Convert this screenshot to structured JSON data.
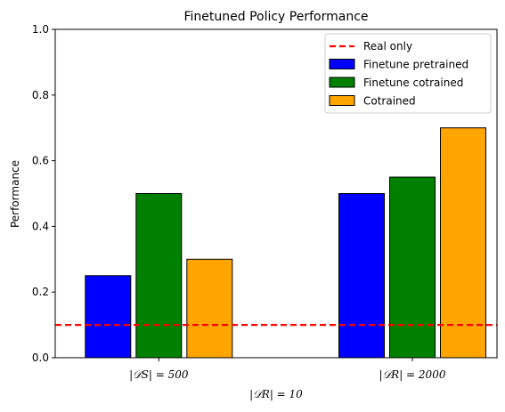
{
  "chart_data": {
    "type": "bar",
    "title": "Finetuned Policy Performance",
    "xlabel": "|𝒟R| = 10",
    "ylabel": "Performance",
    "ylim": [
      0,
      1.0
    ],
    "yticks": [
      "0.0",
      "0.2",
      "0.4",
      "0.6",
      "0.8",
      "1.0"
    ],
    "ytick_values": [
      0.0,
      0.2,
      0.4,
      0.6,
      0.8,
      1.0
    ],
    "categories": [
      "|𝒟S| = 500",
      "|𝒟R| = 2000"
    ],
    "series": [
      {
        "name": "Finetune pretrained",
        "color": "#0000ff",
        "values": [
          0.25,
          0.5
        ]
      },
      {
        "name": "Finetune cotrained",
        "color": "#008000",
        "values": [
          0.5,
          0.55
        ]
      },
      {
        "name": "Cotrained",
        "color": "#ffa500",
        "values": [
          0.3,
          0.7
        ]
      }
    ],
    "reference_line": {
      "name": "Real only",
      "value": 0.1,
      "color": "#ff0000",
      "style": "dashed"
    },
    "legend": {
      "placement": "top-right"
    },
    "grid": false
  }
}
